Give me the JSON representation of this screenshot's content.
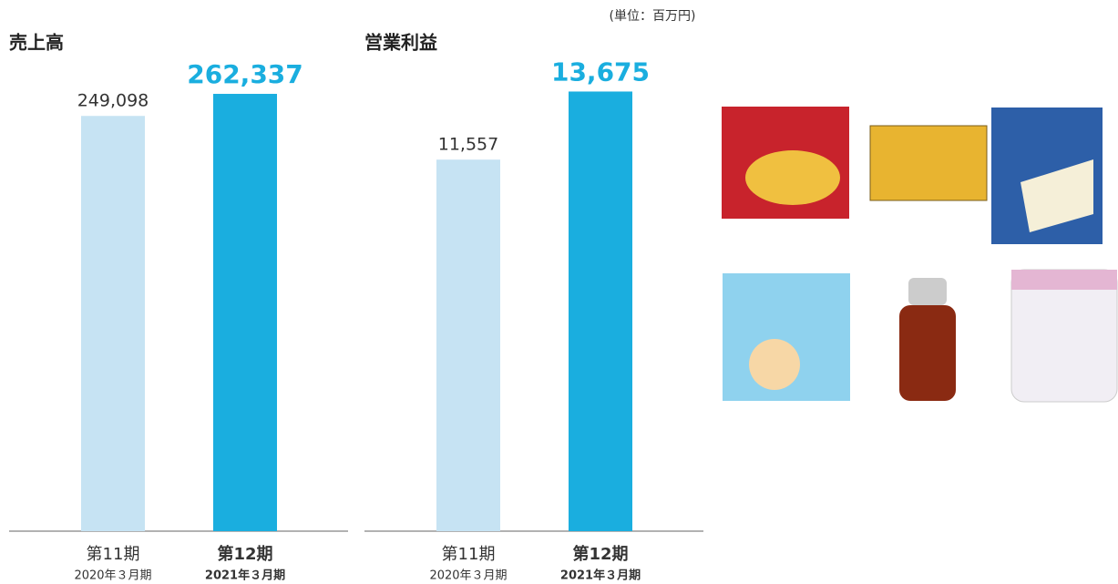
{
  "unit_note": "(単位：百万円)",
  "chart_data": [
    {
      "type": "bar",
      "title": "売上高",
      "categories": [
        "第11期",
        "第12期"
      ],
      "category_sublabels": [
        "2020年３月期",
        "2021年３月期"
      ],
      "values": [
        249098,
        262337
      ],
      "value_labels": [
        "249,098",
        "262,337"
      ],
      "colors": [
        "#c6e3f3",
        "#1aaedf"
      ],
      "ylim": [
        0,
        270000
      ]
    },
    {
      "type": "bar",
      "title": "営業利益",
      "categories": [
        "第11期",
        "第12期"
      ],
      "category_sublabels": [
        "2020年３月期",
        "2021年３月期"
      ],
      "values": [
        11557,
        13675
      ],
      "value_labels": [
        "11,557",
        "13,675"
      ],
      "colors": [
        "#c6e3f3",
        "#1aaedf"
      ],
      "ylim": [
        0,
        14000
      ]
    }
  ]
}
